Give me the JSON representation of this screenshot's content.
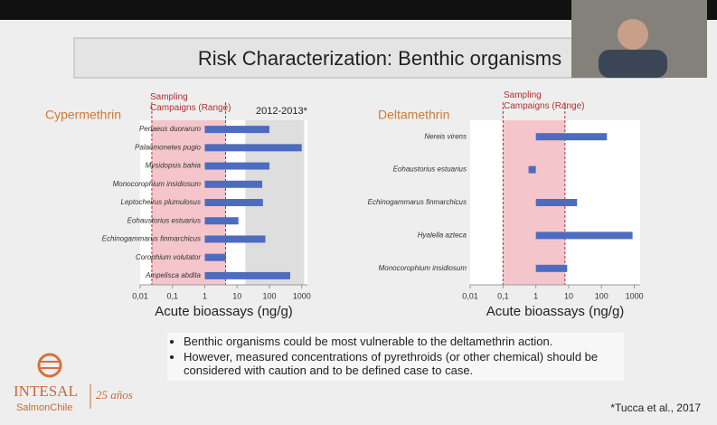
{
  "slide_title": "Risk Characterization: Benthic organisms",
  "chart_data": [
    {
      "type": "bar",
      "orientation": "horizontal",
      "title": "Cypermethrin",
      "categories": [
        "Penaeus duorarum",
        "Palaemonetes pugio",
        "Mysidopsis bahia",
        "Monocorophium insidiosum",
        "Leptocheirus plumulosus",
        "Eohaustorius estuarius",
        "Echinogammarus finmarchicus",
        "Corophium volutator",
        "Ampelisca abdita"
      ],
      "values": [
        100,
        1000,
        100,
        60,
        63,
        11,
        75,
        4.5,
        440
      ],
      "color": "#4e6cbf",
      "log_scale": true,
      "xlabel": "Acute bioassays (ng/g)",
      "xlim": [
        0.01,
        1500
      ],
      "xticks": [
        {
          "value": 0.01,
          "label": "0,01"
        },
        {
          "value": 0.1,
          "label": "0,1"
        },
        1,
        10,
        100,
        1000
      ],
      "sampling_range": [
        0.023,
        4.4
      ],
      "sampling_label": "Sampling Campaigns (Range)",
      "reference_range": [
        18,
        1200
      ],
      "reference_label": "2012-2013*"
    },
    {
      "type": "bar",
      "orientation": "horizontal",
      "title": "Deltamethrin",
      "categories": [
        "Nereis virens",
        "Eohaustorius estuarius",
        "Echinogammarus finmarchicus",
        "Hyalella azteca",
        "Monocorophium insidiosum"
      ],
      "values": [
        146,
        0.6,
        18,
        880,
        9
      ],
      "color": "#4e6cbf",
      "log_scale": true,
      "xlabel": "Acute bioassays (ng/g)",
      "xlim": [
        0.01,
        1500
      ],
      "xticks": [
        {
          "value": 0.01,
          "label": "0,01"
        },
        {
          "value": 0.1,
          "label": "0,1"
        },
        1,
        10,
        100,
        1000
      ],
      "sampling_range": [
        0.1,
        7.7
      ],
      "sampling_label": "Sampling Campaigns (Range)"
    }
  ],
  "bullets": [
    "Benthic organisms could be most vulnerable to the deltamethrin action.",
    "However, measured concentrations of pyrethroids (or other chemical) should be considered with caution and to be defined case to case."
  ],
  "logo": {
    "name": "INTESAL",
    "sub": "SalmonChile",
    "anniversary": "25 años"
  },
  "citation": "*Tucca et al., 2017"
}
